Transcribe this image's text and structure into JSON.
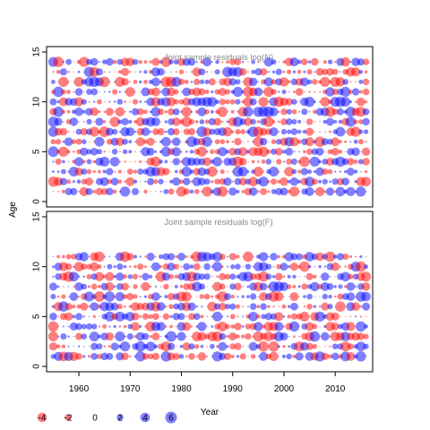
{
  "chart_data": {
    "type": "scatter",
    "subtype": "bubble-residuals",
    "xlabel": "Year",
    "ylabel": "Age",
    "x_range": [
      1955,
      2016
    ],
    "x_ticks": [
      1960,
      1970,
      1980,
      1990,
      2000,
      2010
    ],
    "ages": [
      1,
      2,
      3,
      4,
      5,
      6,
      7,
      8,
      9,
      10,
      11,
      12,
      13,
      14
    ],
    "colors": {
      "negative": "#ff0000",
      "positive": "#0000ff"
    },
    "panels": [
      {
        "id": "logN",
        "title": "Joint sample residuals log(N)",
        "ylim": [
          0,
          15
        ],
        "y_ticks": [
          0,
          5,
          10,
          15
        ],
        "age_range": [
          1,
          14
        ]
      },
      {
        "id": "logF",
        "title": "Joint sample residuals log(F)",
        "ylim": [
          0,
          15
        ],
        "y_ticks": [
          0,
          5,
          10,
          15
        ],
        "age_range": [
          1,
          11
        ]
      }
    ],
    "legend": {
      "position": "bottom-left",
      "entries": [
        {
          "label": "-4",
          "value": -4
        },
        {
          "label": "-2",
          "value": -2
        },
        {
          "label": "0",
          "value": 0
        },
        {
          "label": "2",
          "value": 2
        },
        {
          "label": "4",
          "value": 4
        },
        {
          "label": "6",
          "value": 6
        }
      ]
    },
    "residual_sampling": {
      "seed_logN": 1234,
      "seed_logF": 98765,
      "max_abs": 5
    }
  }
}
